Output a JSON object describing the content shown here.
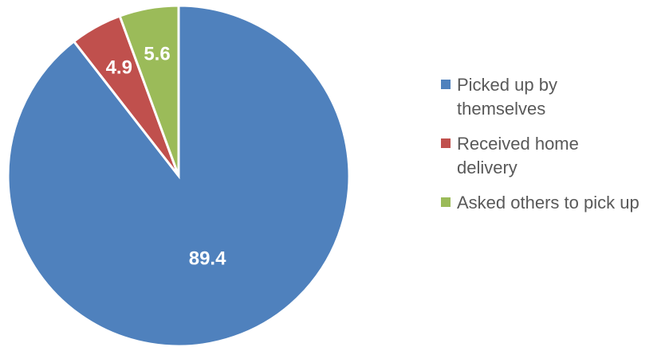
{
  "chart_data": {
    "type": "pie",
    "categories": [
      "Picked up by themselves",
      "Received home delivery",
      "Asked others to pick up"
    ],
    "values": [
      89.4,
      4.9,
      5.6
    ],
    "colors": [
      "#4f81bd",
      "#c0504d",
      "#9bbb59"
    ],
    "legend": "right"
  }
}
